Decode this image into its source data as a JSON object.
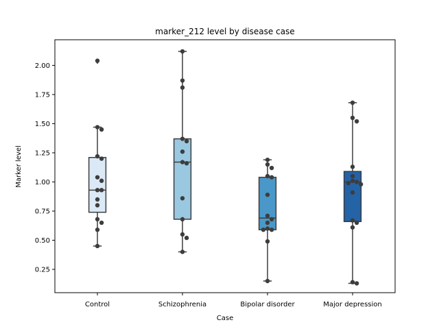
{
  "chart_data": {
    "type": "box",
    "title": "marker_212 level by disease case",
    "xlabel": "Case",
    "ylabel": "Marker level",
    "ylim": [
      0.05,
      2.22
    ],
    "yticks": [
      0.25,
      0.5,
      0.75,
      1.0,
      1.25,
      1.5,
      1.75,
      2.0
    ],
    "ytick_labels": [
      "0.25",
      "0.50",
      "0.75",
      "1.00",
      "1.25",
      "1.50",
      "1.75",
      "2.00"
    ],
    "grid": false,
    "categories": [
      "Control",
      "Schizophrenia",
      "Bipolar disorder",
      "Major depression"
    ],
    "box_colors": [
      "#dbe9f6",
      "#9ac8e0",
      "#4a98c9",
      "#2463a6"
    ],
    "edge_color": "#3d3d3d",
    "point_color": "#3d3d3d",
    "boxes": [
      {
        "whisker_low": 0.45,
        "q1": 0.74,
        "median": 0.93,
        "q3": 1.21,
        "whisker_high": 1.47,
        "fliers": [
          2.03,
          2.04
        ]
      },
      {
        "whisker_low": 0.4,
        "q1": 0.68,
        "median": 1.17,
        "q3": 1.37,
        "whisker_high": 2.12,
        "fliers": []
      },
      {
        "whisker_low": 0.15,
        "q1": 0.59,
        "median": 0.69,
        "q3": 1.04,
        "whisker_high": 1.19,
        "fliers": []
      },
      {
        "whisker_low": 0.13,
        "q1": 0.66,
        "median": 1.0,
        "q3": 1.09,
        "whisker_high": 1.68,
        "fliers": []
      }
    ],
    "points": [
      [
        2.04,
        1.47,
        1.45,
        1.22,
        1.2,
        1.04,
        1.01,
        0.93,
        0.93,
        0.85,
        0.8,
        0.68,
        0.65,
        0.59,
        0.45
      ],
      [
        2.12,
        1.87,
        1.81,
        1.37,
        1.35,
        1.26,
        1.17,
        1.16,
        0.86,
        0.68,
        0.55,
        0.52,
        0.4
      ],
      [
        1.19,
        1.15,
        1.12,
        1.05,
        1.04,
        0.89,
        0.71,
        0.68,
        0.65,
        0.6,
        0.59,
        0.59,
        0.49,
        0.15
      ],
      [
        1.68,
        1.55,
        1.52,
        1.13,
        1.05,
        1.01,
        1.0,
        0.99,
        0.98,
        0.91,
        0.67,
        0.65,
        0.61,
        0.14,
        0.13
      ]
    ]
  }
}
